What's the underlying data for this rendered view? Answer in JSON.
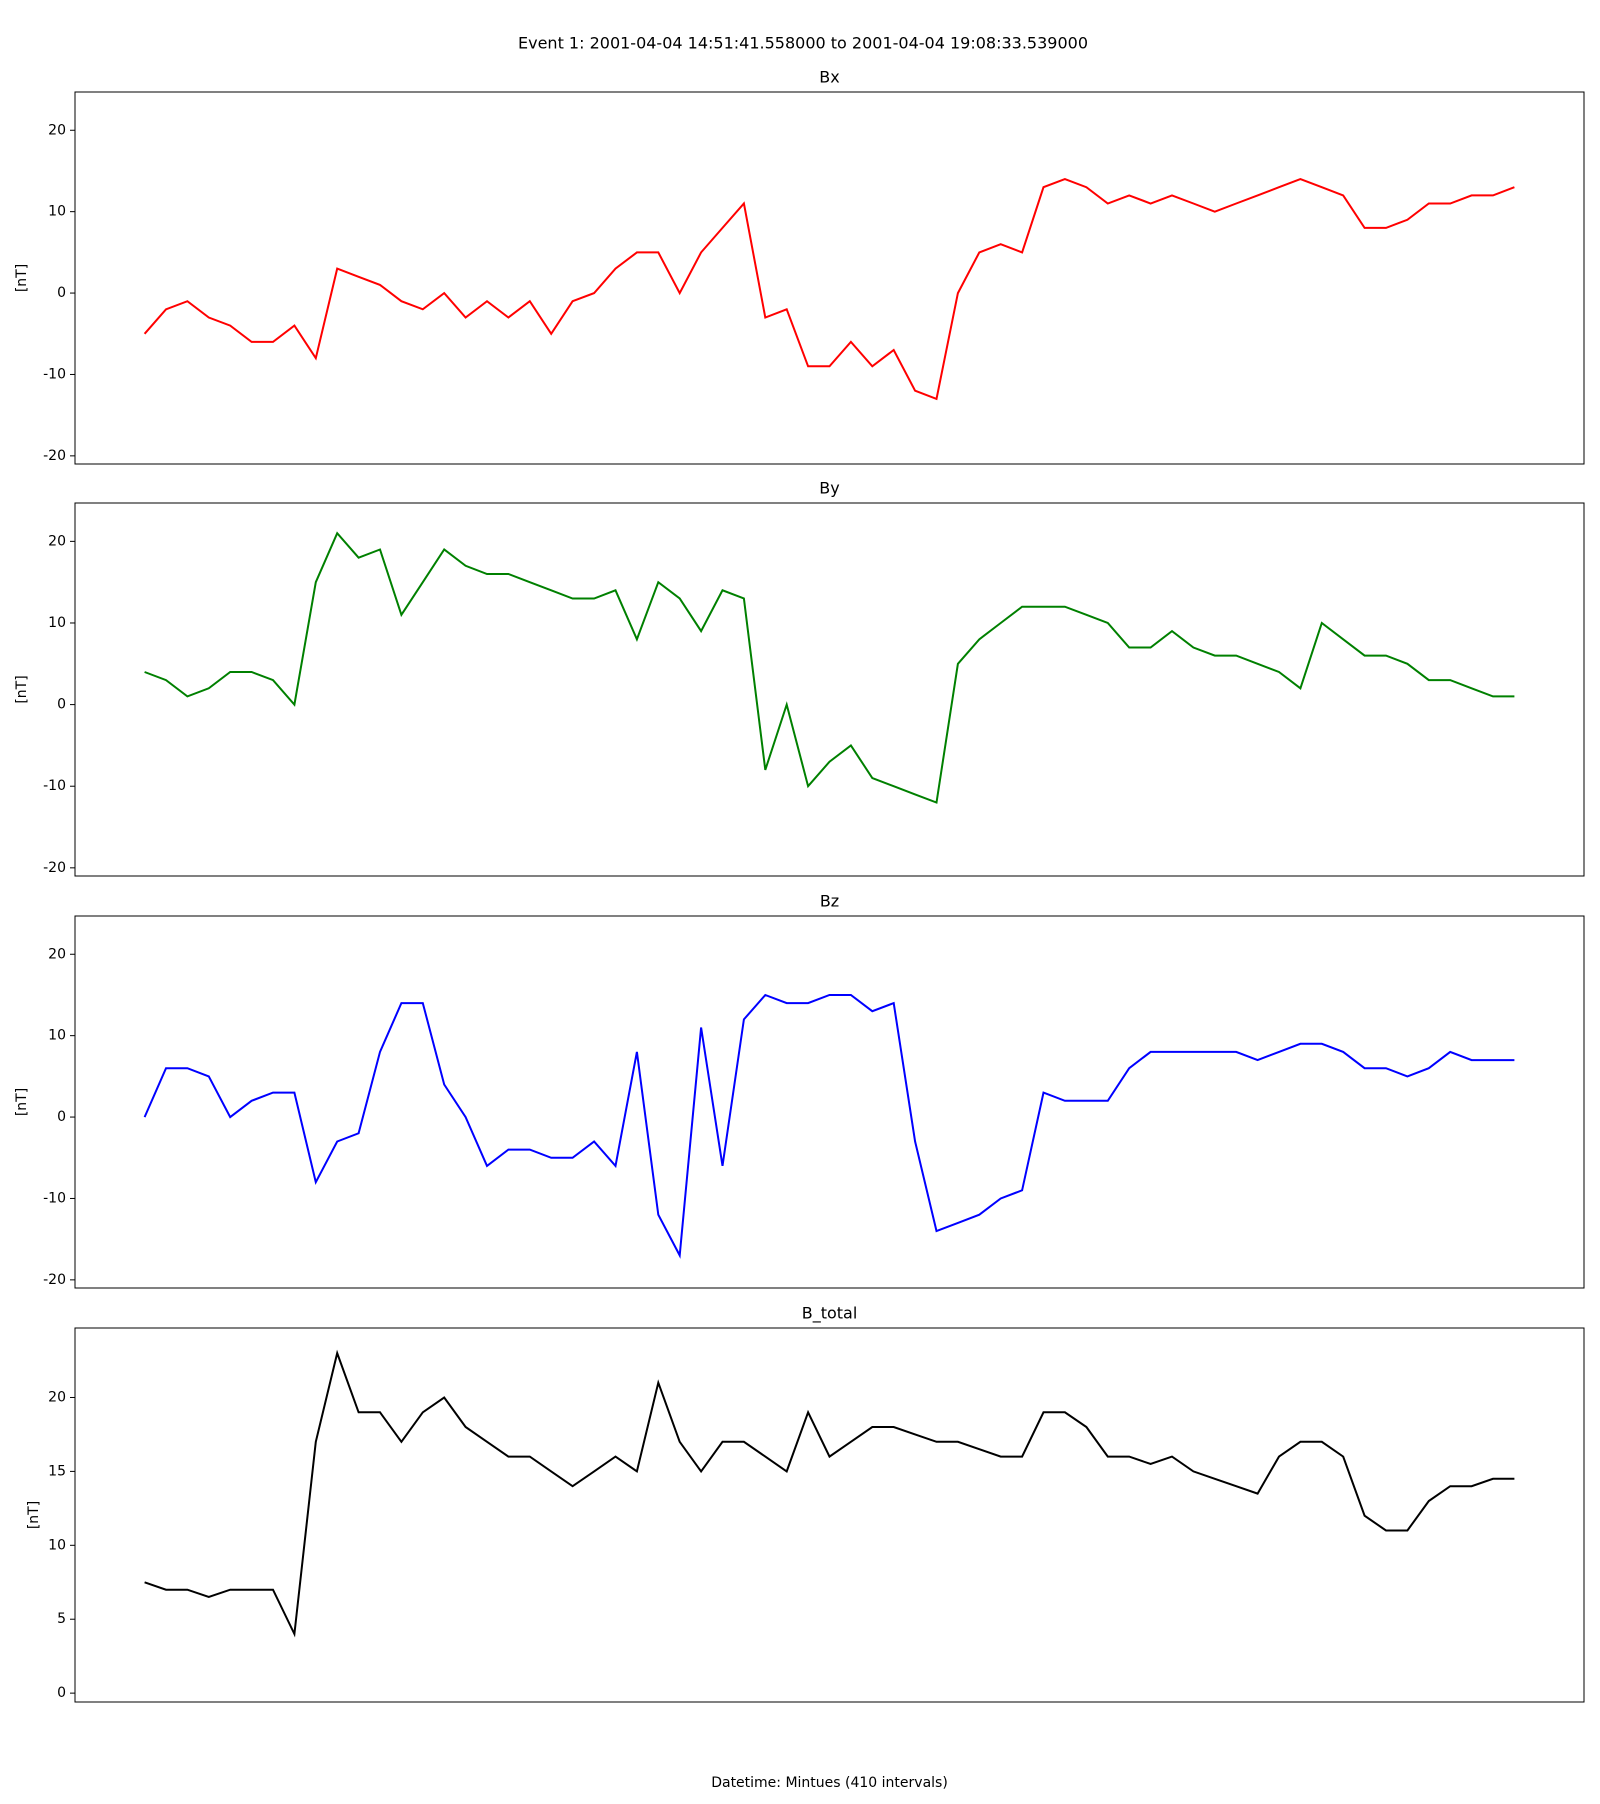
{
  "title": "Event 1: 2001-04-04 14:51:41.558000 to 2001-04-04 19:08:33.539000",
  "chart_data": [
    {
      "type": "line",
      "title": "Bx",
      "ylabel": "[nT]",
      "color": "#ff0000",
      "x": [
        "14:52",
        "14:56",
        "15:00",
        "15:04",
        "15:08",
        "15:12",
        "15:16",
        "15:20",
        "15:24",
        "15:28",
        "15:32",
        "15:36",
        "15:40",
        "15:44",
        "15:48",
        "15:52",
        "15:56",
        "16:00",
        "16:04",
        "16:08",
        "16:12",
        "16:16",
        "16:20",
        "16:24",
        "16:28",
        "16:32",
        "16:36",
        "16:40",
        "16:44",
        "16:48",
        "16:52",
        "16:56",
        "17:00",
        "17:04",
        "17:08",
        "17:12",
        "17:16",
        "17:20",
        "17:24",
        "17:28",
        "17:32",
        "17:36",
        "17:40",
        "17:44",
        "17:48",
        "17:52",
        "17:56",
        "18:00",
        "18:04",
        "18:08",
        "18:12",
        "18:16",
        "18:20",
        "18:24",
        "18:28",
        "18:32",
        "18:36",
        "18:40",
        "18:44",
        "18:48",
        "18:52",
        "18:56",
        "19:00",
        "19:04",
        "19:08"
      ],
      "values": [
        -5,
        -2,
        -1,
        -3,
        -4,
        -6,
        -6,
        -4,
        -8,
        3,
        2,
        1,
        -1,
        -2,
        0,
        -3,
        -1,
        -3,
        -1,
        -5,
        -1,
        0,
        3,
        5,
        5,
        0,
        5,
        8,
        11,
        -3,
        -2,
        -9,
        -9,
        -6,
        -9,
        -7,
        -12,
        -13,
        0,
        5,
        6,
        5,
        13,
        14,
        13,
        11,
        12,
        11,
        12,
        11,
        10,
        11,
        12,
        13,
        14,
        13,
        12,
        8,
        8,
        9,
        11,
        11,
        12,
        12,
        13
      ],
      "xlim": [
        "14:39",
        "19:21"
      ],
      "ylim": [
        -21,
        24.7
      ],
      "yticks": [
        -20,
        -10,
        0,
        10,
        20
      ]
    },
    {
      "type": "line",
      "title": "By",
      "ylabel": "[nT]",
      "color": "#008000",
      "x": [
        "14:52",
        "14:56",
        "15:00",
        "15:04",
        "15:08",
        "15:12",
        "15:16",
        "15:20",
        "15:24",
        "15:28",
        "15:32",
        "15:36",
        "15:40",
        "15:44",
        "15:48",
        "15:52",
        "15:56",
        "16:00",
        "16:04",
        "16:08",
        "16:12",
        "16:16",
        "16:20",
        "16:24",
        "16:28",
        "16:32",
        "16:36",
        "16:40",
        "16:44",
        "16:48",
        "16:52",
        "16:56",
        "17:00",
        "17:04",
        "17:08",
        "17:12",
        "17:16",
        "17:20",
        "17:24",
        "17:28",
        "17:32",
        "17:36",
        "17:40",
        "17:44",
        "17:48",
        "17:52",
        "17:56",
        "18:00",
        "18:04",
        "18:08",
        "18:12",
        "18:16",
        "18:20",
        "18:24",
        "18:28",
        "18:32",
        "18:36",
        "18:40",
        "18:44",
        "18:48",
        "18:52",
        "18:56",
        "19:00",
        "19:04",
        "19:08"
      ],
      "values": [
        4,
        3,
        1,
        2,
        4,
        4,
        3,
        0,
        15,
        21,
        18,
        19,
        11,
        15,
        19,
        17,
        16,
        16,
        15,
        14,
        13,
        13,
        14,
        8,
        15,
        13,
        9,
        14,
        13,
        -8,
        0,
        -10,
        -7,
        -5,
        -9,
        -10,
        -11,
        -12,
        5,
        8,
        10,
        12,
        12,
        12,
        11,
        10,
        7,
        7,
        9,
        7,
        6,
        6,
        5,
        4,
        2,
        10,
        8,
        6,
        6,
        5,
        3,
        3,
        2,
        1,
        1
      ],
      "xlim": [
        "14:39",
        "19:21"
      ],
      "ylim": [
        -21,
        24.7
      ],
      "yticks": [
        -20,
        -10,
        0,
        10,
        20
      ]
    },
    {
      "type": "line",
      "title": "Bz",
      "ylabel": "[nT]",
      "color": "#0000ff",
      "x": [
        "14:52",
        "14:56",
        "15:00",
        "15:04",
        "15:08",
        "15:12",
        "15:16",
        "15:20",
        "15:24",
        "15:28",
        "15:32",
        "15:36",
        "15:40",
        "15:44",
        "15:48",
        "15:52",
        "15:56",
        "16:00",
        "16:04",
        "16:08",
        "16:12",
        "16:16",
        "16:20",
        "16:24",
        "16:28",
        "16:32",
        "16:36",
        "16:40",
        "16:44",
        "16:48",
        "16:52",
        "16:56",
        "17:00",
        "17:04",
        "17:08",
        "17:12",
        "17:16",
        "17:20",
        "17:24",
        "17:28",
        "17:32",
        "17:36",
        "17:40",
        "17:44",
        "17:48",
        "17:52",
        "17:56",
        "18:00",
        "18:04",
        "18:08",
        "18:12",
        "18:16",
        "18:20",
        "18:24",
        "18:28",
        "18:32",
        "18:36",
        "18:40",
        "18:44",
        "18:48",
        "18:52",
        "18:56",
        "19:00",
        "19:04",
        "19:08"
      ],
      "values": [
        0,
        6,
        6,
        5,
        0,
        2,
        3,
        3,
        -8,
        -3,
        -2,
        8,
        14,
        14,
        4,
        0,
        -6,
        -4,
        -4,
        -5,
        -5,
        -3,
        -6,
        8,
        -12,
        -17,
        11,
        -6,
        12,
        15,
        14,
        14,
        15,
        15,
        13,
        14,
        -3,
        -14,
        -13,
        -12,
        -10,
        -9,
        3,
        2,
        2,
        2,
        6,
        8,
        8,
        8,
        8,
        8,
        7,
        8,
        9,
        9,
        8,
        6,
        6,
        5,
        6,
        8,
        7,
        7,
        7
      ],
      "xlim": [
        "14:39",
        "19:21"
      ],
      "ylim": [
        -21,
        24.7
      ],
      "yticks": [
        -20,
        -10,
        0,
        10,
        20
      ]
    },
    {
      "type": "line",
      "title": "B_total",
      "ylabel": "[nT]",
      "color": "#000000",
      "xlabel": "Datetime: Mintues (410 intervals)",
      "x": [
        "14:52",
        "14:56",
        "15:00",
        "15:04",
        "15:08",
        "15:12",
        "15:16",
        "15:20",
        "15:24",
        "15:28",
        "15:32",
        "15:36",
        "15:40",
        "15:44",
        "15:48",
        "15:52",
        "15:56",
        "16:00",
        "16:04",
        "16:08",
        "16:12",
        "16:16",
        "16:20",
        "16:24",
        "16:28",
        "16:32",
        "16:36",
        "16:40",
        "16:44",
        "16:48",
        "16:52",
        "16:56",
        "17:00",
        "17:04",
        "17:08",
        "17:12",
        "17:16",
        "17:20",
        "17:24",
        "17:28",
        "17:32",
        "17:36",
        "17:40",
        "17:44",
        "17:48",
        "17:52",
        "17:56",
        "18:00",
        "18:04",
        "18:08",
        "18:12",
        "18:16",
        "18:20",
        "18:24",
        "18:28",
        "18:32",
        "18:36",
        "18:40",
        "18:44",
        "18:48",
        "18:52",
        "18:56",
        "19:00",
        "19:04",
        "19:08"
      ],
      "values": [
        7.5,
        7,
        7,
        6.5,
        7,
        7,
        7,
        4,
        17,
        23,
        19,
        19,
        17,
        19,
        20,
        18,
        17,
        16,
        16,
        15,
        14,
        15,
        16,
        15,
        21,
        17,
        15,
        17,
        17,
        16,
        15,
        19,
        16,
        17,
        18,
        18,
        17.5,
        17,
        17,
        16.5,
        16,
        16,
        19,
        19,
        18,
        16,
        16,
        15.5,
        16,
        15,
        14.5,
        14,
        13.5,
        16,
        17,
        17,
        16,
        12,
        11,
        11,
        13,
        14,
        14,
        14.5,
        14.5
      ],
      "xlim": [
        "14:39",
        "19:21"
      ],
      "ylim": [
        -0.6,
        24.7
      ],
      "yticks": [
        0,
        5,
        10,
        15,
        20
      ]
    }
  ]
}
